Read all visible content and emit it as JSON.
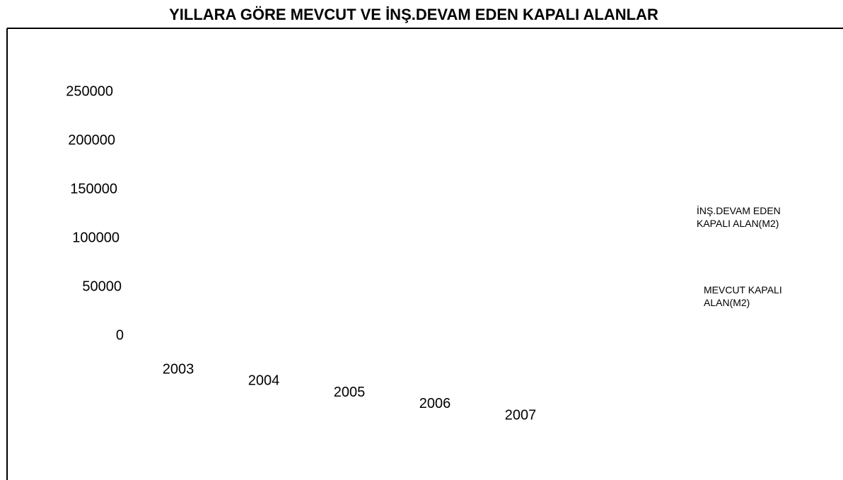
{
  "chart_data": {
    "type": "bar",
    "title": "YILLARA GÖRE MEVCUT VE İNŞ.DEVAM EDEN KAPALI ALANLAR",
    "categories": [
      "2003",
      "2004",
      "2005",
      "2006",
      "2007"
    ],
    "series": [
      {
        "name": "İNŞ.DEVAM EDEN KAPALI ALAN(M2)"
      },
      {
        "name": "MEVCUT KAPALI ALAN(M2)"
      }
    ],
    "ylim": [
      0,
      250000
    ],
    "yticks": [
      0,
      50000,
      100000,
      150000,
      200000,
      250000
    ]
  }
}
